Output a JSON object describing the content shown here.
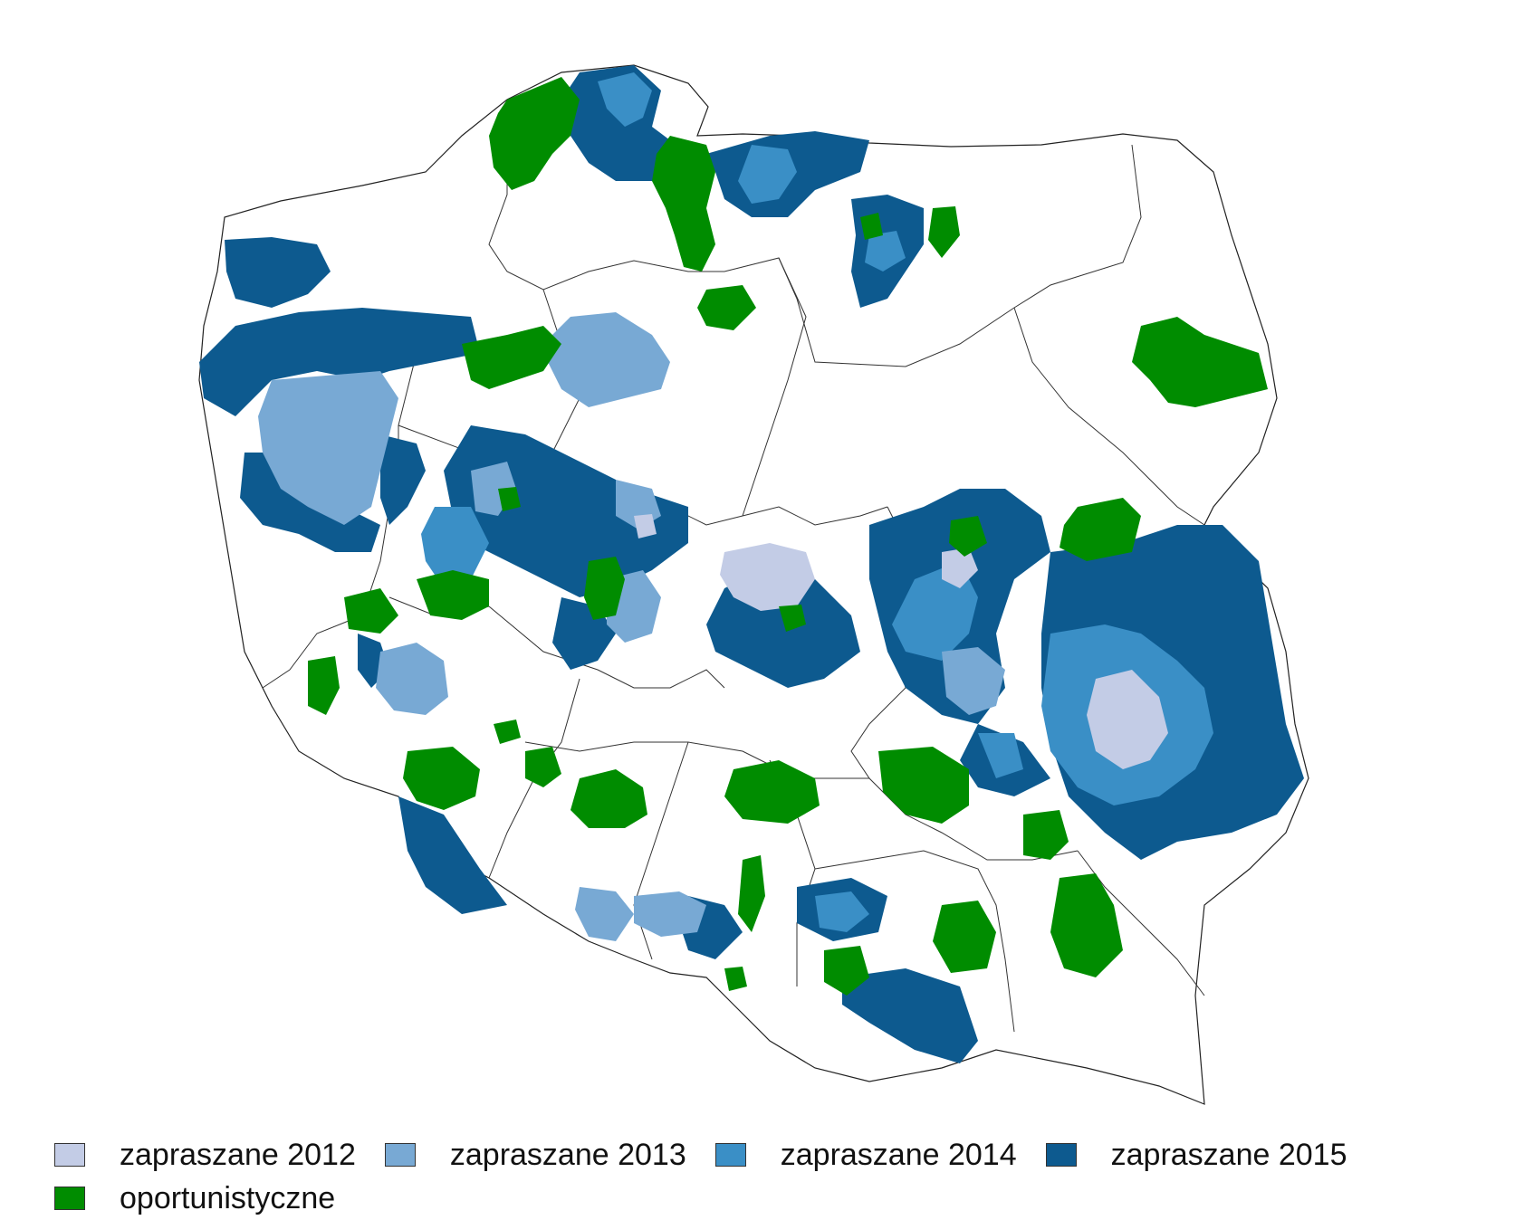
{
  "map": {
    "colors": {
      "z2012": "#c3cce6",
      "z2013": "#78a9d4",
      "z2014": "#3a8fc6",
      "z2015": "#0d5a8f",
      "opp": "#008c00",
      "border": "#222222"
    }
  },
  "legend": {
    "items": [
      {
        "key": "z2012",
        "label": "zapraszane 2012",
        "color": "#c3cce6"
      },
      {
        "key": "z2013",
        "label": "zapraszane 2013",
        "color": "#78a9d4"
      },
      {
        "key": "z2014",
        "label": "zapraszane 2014",
        "color": "#3a8fc6"
      },
      {
        "key": "z2015",
        "label": "zapraszane 2015",
        "color": "#0d5a8f"
      },
      {
        "key": "opp",
        "label": "oportunistyczne",
        "color": "#008c00"
      }
    ]
  }
}
